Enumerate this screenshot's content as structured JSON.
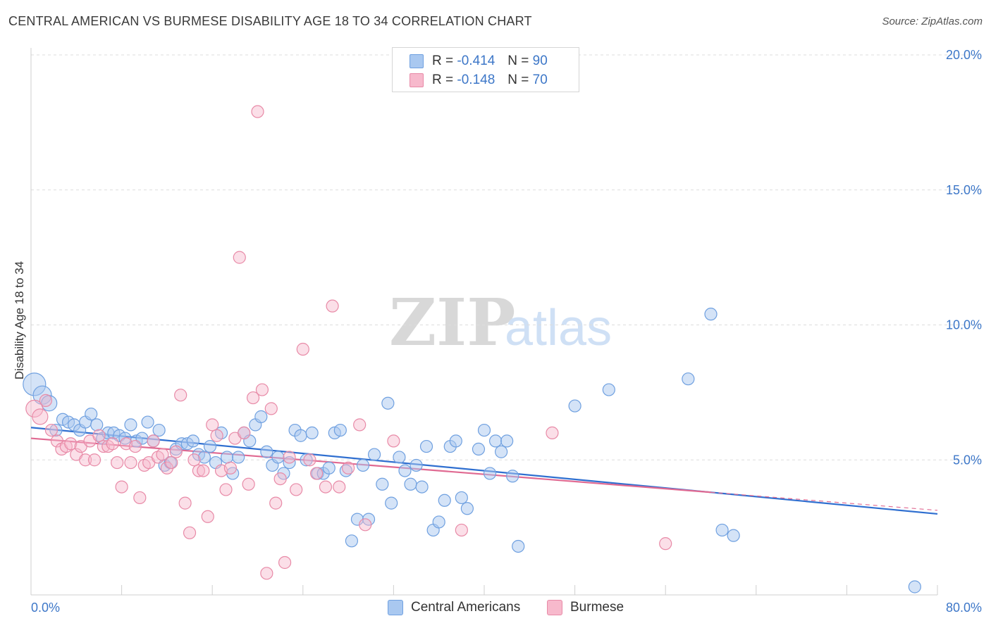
{
  "header": {
    "title": "CENTRAL AMERICAN VS BURMESE DISABILITY AGE 18 TO 34 CORRELATION CHART",
    "source": "Source: ZipAtlas.com"
  },
  "watermark": {
    "zip": "ZIP",
    "atlas": "atlas"
  },
  "legend": {
    "rows": [
      {
        "r_label": "R =",
        "r_value": "-0.414",
        "n_label": "N =",
        "n_value": "90"
      },
      {
        "r_label": "R =",
        "r_value": "-0.148",
        "n_label": "N =",
        "n_value": "70"
      }
    ]
  },
  "colors": {
    "blue_fill": "#a9c8f0",
    "blue_stroke": "#6fa0e0",
    "blue_line": "#2f6fd0",
    "pink_fill": "#f7b9cc",
    "pink_stroke": "#e88aa7",
    "pink_line": "#e06a92",
    "tick_text": "#3d77c8",
    "grid": "#dddddd"
  },
  "chart_data": {
    "type": "scatter",
    "title": "CENTRAL AMERICAN VS BURMESE DISABILITY AGE 18 TO 34 CORRELATION CHART",
    "xlabel": "",
    "ylabel": "Disability Age 18 to 34",
    "xlim": [
      0,
      80
    ],
    "ylim": [
      0,
      20
    ],
    "x_tick_labels": [
      "0.0%",
      "80.0%"
    ],
    "y_ticks": [
      {
        "value": 5,
        "label": "5.0%"
      },
      {
        "value": 10,
        "label": "10.0%"
      },
      {
        "value": 15,
        "label": "15.0%"
      },
      {
        "value": 20,
        "label": "20.0%"
      }
    ],
    "grid": "horizontal dashed",
    "legend_placement": "top-center and bottom",
    "series": [
      {
        "name": "Central Americans",
        "color": "#a9c8f0",
        "trend": {
          "x": [
            0,
            80
          ],
          "y": [
            6.2,
            3.0
          ]
        },
        "points": [
          [
            0.3,
            7.8
          ],
          [
            1.0,
            7.4
          ],
          [
            1.6,
            7.1
          ],
          [
            2.2,
            6.1
          ],
          [
            2.8,
            6.5
          ],
          [
            3.3,
            6.4
          ],
          [
            3.8,
            6.3
          ],
          [
            4.3,
            6.1
          ],
          [
            4.8,
            6.4
          ],
          [
            5.3,
            6.7
          ],
          [
            5.8,
            6.3
          ],
          [
            6.3,
            5.8
          ],
          [
            6.8,
            6.0
          ],
          [
            7.3,
            6.0
          ],
          [
            7.8,
            5.9
          ],
          [
            8.3,
            5.8
          ],
          [
            8.8,
            6.3
          ],
          [
            9.3,
            5.7
          ],
          [
            9.8,
            5.8
          ],
          [
            10.3,
            6.4
          ],
          [
            10.8,
            5.7
          ],
          [
            11.3,
            6.1
          ],
          [
            11.8,
            4.8
          ],
          [
            12.3,
            4.9
          ],
          [
            12.8,
            5.4
          ],
          [
            13.3,
            5.6
          ],
          [
            13.8,
            5.6
          ],
          [
            14.3,
            5.7
          ],
          [
            14.8,
            5.2
          ],
          [
            15.3,
            5.1
          ],
          [
            15.8,
            5.5
          ],
          [
            16.3,
            4.9
          ],
          [
            16.8,
            6.0
          ],
          [
            17.3,
            5.1
          ],
          [
            17.8,
            4.5
          ],
          [
            18.3,
            5.1
          ],
          [
            18.8,
            6.0
          ],
          [
            19.3,
            5.7
          ],
          [
            19.8,
            6.3
          ],
          [
            20.3,
            6.6
          ],
          [
            20.8,
            5.3
          ],
          [
            21.3,
            4.8
          ],
          [
            21.8,
            5.1
          ],
          [
            22.3,
            4.5
          ],
          [
            22.8,
            4.9
          ],
          [
            23.3,
            6.1
          ],
          [
            23.8,
            5.9
          ],
          [
            24.3,
            5.0
          ],
          [
            24.8,
            6.0
          ],
          [
            25.3,
            4.5
          ],
          [
            25.8,
            4.5
          ],
          [
            26.3,
            4.7
          ],
          [
            26.8,
            6.0
          ],
          [
            27.3,
            6.1
          ],
          [
            27.8,
            4.6
          ],
          [
            28.3,
            2.0
          ],
          [
            28.8,
            2.8
          ],
          [
            29.3,
            4.8
          ],
          [
            29.8,
            2.8
          ],
          [
            30.3,
            5.2
          ],
          [
            31.0,
            4.1
          ],
          [
            31.5,
            7.1
          ],
          [
            31.8,
            3.4
          ],
          [
            32.5,
            5.1
          ],
          [
            33.0,
            4.6
          ],
          [
            33.5,
            4.1
          ],
          [
            34.0,
            4.8
          ],
          [
            34.5,
            4.0
          ],
          [
            34.9,
            5.5
          ],
          [
            35.5,
            2.4
          ],
          [
            36.0,
            2.7
          ],
          [
            36.5,
            3.5
          ],
          [
            37.0,
            5.5
          ],
          [
            37.5,
            5.7
          ],
          [
            38.0,
            3.6
          ],
          [
            38.5,
            3.2
          ],
          [
            39.5,
            5.4
          ],
          [
            40.0,
            6.1
          ],
          [
            40.5,
            4.5
          ],
          [
            41.0,
            5.7
          ],
          [
            41.5,
            5.3
          ],
          [
            42.0,
            5.7
          ],
          [
            42.5,
            4.4
          ],
          [
            43.0,
            1.8
          ],
          [
            48.0,
            7.0
          ],
          [
            51.0,
            7.6
          ],
          [
            58.0,
            8.0
          ],
          [
            60.0,
            10.4
          ],
          [
            61.0,
            2.4
          ],
          [
            62.0,
            2.2
          ],
          [
            78.0,
            0.3
          ]
        ]
      },
      {
        "name": "Burmese",
        "color": "#f7b9cc",
        "trend": {
          "x": [
            0,
            60
          ],
          "y": [
            5.8,
            3.8
          ]
        },
        "points": [
          [
            0.3,
            6.9
          ],
          [
            0.8,
            6.6
          ],
          [
            1.3,
            7.2
          ],
          [
            1.8,
            6.1
          ],
          [
            2.3,
            5.7
          ],
          [
            2.7,
            5.4
          ],
          [
            3.1,
            5.5
          ],
          [
            3.5,
            5.6
          ],
          [
            4.0,
            5.2
          ],
          [
            4.4,
            5.5
          ],
          [
            4.8,
            5.0
          ],
          [
            5.2,
            5.7
          ],
          [
            5.6,
            5.0
          ],
          [
            6.0,
            5.9
          ],
          [
            6.4,
            5.5
          ],
          [
            6.8,
            5.5
          ],
          [
            7.2,
            5.6
          ],
          [
            7.6,
            4.9
          ],
          [
            8.0,
            4.0
          ],
          [
            8.4,
            5.6
          ],
          [
            8.8,
            4.9
          ],
          [
            9.2,
            5.5
          ],
          [
            9.6,
            3.6
          ],
          [
            10.0,
            4.8
          ],
          [
            10.4,
            4.9
          ],
          [
            10.8,
            5.7
          ],
          [
            11.2,
            5.1
          ],
          [
            11.6,
            5.2
          ],
          [
            12.0,
            4.7
          ],
          [
            12.4,
            4.9
          ],
          [
            12.8,
            5.3
          ],
          [
            13.2,
            7.4
          ],
          [
            13.6,
            3.4
          ],
          [
            14.0,
            2.3
          ],
          [
            14.4,
            5.0
          ],
          [
            14.8,
            4.6
          ],
          [
            15.2,
            4.6
          ],
          [
            15.6,
            2.9
          ],
          [
            16.0,
            6.3
          ],
          [
            16.4,
            5.9
          ],
          [
            16.8,
            4.6
          ],
          [
            17.2,
            3.9
          ],
          [
            17.6,
            4.7
          ],
          [
            18.0,
            5.8
          ],
          [
            18.4,
            12.5
          ],
          [
            18.8,
            6.0
          ],
          [
            19.2,
            4.1
          ],
          [
            19.6,
            7.3
          ],
          [
            20.0,
            17.9
          ],
          [
            20.4,
            7.6
          ],
          [
            20.8,
            0.8
          ],
          [
            21.2,
            6.9
          ],
          [
            21.6,
            3.4
          ],
          [
            22.0,
            4.3
          ],
          [
            22.4,
            1.2
          ],
          [
            22.8,
            5.1
          ],
          [
            23.4,
            3.9
          ],
          [
            24.0,
            9.1
          ],
          [
            24.6,
            5.0
          ],
          [
            25.2,
            4.5
          ],
          [
            26.0,
            4.0
          ],
          [
            26.6,
            10.7
          ],
          [
            27.2,
            4.0
          ],
          [
            28.0,
            4.7
          ],
          [
            29.0,
            6.3
          ],
          [
            29.5,
            2.6
          ],
          [
            32.0,
            5.7
          ],
          [
            38.0,
            2.4
          ],
          [
            46.0,
            6.0
          ],
          [
            56.0,
            1.9
          ]
        ]
      }
    ]
  }
}
